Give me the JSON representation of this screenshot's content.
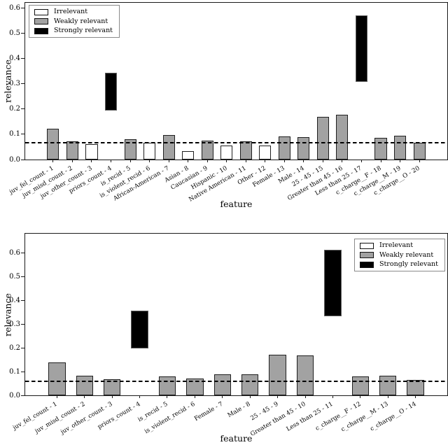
{
  "figure": {
    "background": "#ffffff"
  },
  "colors": {
    "irrelevant_fill": "#ffffff",
    "weak_fill": "#a2a2a2",
    "strong_fill": "#000000",
    "bar_edge": "#1f1f1f",
    "threshold_line": "#000000",
    "axes_edge": "#1a1a1a"
  },
  "legend": {
    "items": [
      {
        "label": "Irrelevant",
        "type": "irrelevant"
      },
      {
        "label": "Weakly relevant",
        "type": "weak"
      },
      {
        "label": "Strongly relevant",
        "type": "strong"
      }
    ]
  },
  "chart_data": [
    {
      "type": "bar",
      "title": "",
      "xlabel": "feature",
      "ylabel": "relevance",
      "ylim": [
        0,
        0.62
      ],
      "yticks": [
        0.0,
        0.1,
        0.2,
        0.3,
        0.4,
        0.5,
        0.6
      ],
      "grid": false,
      "legend_position": "upper-left",
      "threshold": 0.066,
      "bars": [
        {
          "label": "juv_fel_count - 1",
          "relevance_class": "weak",
          "low": 0,
          "high": 0.122
        },
        {
          "label": "juv_misd_count - 2",
          "relevance_class": "weak",
          "low": 0,
          "high": 0.073
        },
        {
          "label": "juv_other_count - 3",
          "relevance_class": "irrelevant",
          "low": 0,
          "high": 0.062
        },
        {
          "label": "priors_count - 4",
          "relevance_class": "strong",
          "low": 0.195,
          "high": 0.343
        },
        {
          "label": "is_recid - 5",
          "relevance_class": "weak",
          "low": 0,
          "high": 0.081
        },
        {
          "label": "is_violent_recid - 6",
          "relevance_class": "irrelevant",
          "low": 0,
          "high": 0.066
        },
        {
          "label": "African-American - 7",
          "relevance_class": "weak",
          "low": 0,
          "high": 0.096
        },
        {
          "label": "Asian - 8",
          "relevance_class": "irrelevant",
          "low": 0,
          "high": 0.034
        },
        {
          "label": "Caucasian - 9",
          "relevance_class": "weak",
          "low": 0,
          "high": 0.075
        },
        {
          "label": "Hispanic - 10",
          "relevance_class": "irrelevant",
          "low": 0,
          "high": 0.055
        },
        {
          "label": "Native American - 11",
          "relevance_class": "weak",
          "low": 0,
          "high": 0.073
        },
        {
          "label": "Other - 12",
          "relevance_class": "irrelevant",
          "low": 0,
          "high": 0.055
        },
        {
          "label": "Female - 13",
          "relevance_class": "weak",
          "low": 0,
          "high": 0.09
        },
        {
          "label": "Male - 14",
          "relevance_class": "weak",
          "low": 0,
          "high": 0.089
        },
        {
          "label": "25 - 45 - 15",
          "relevance_class": "weak",
          "low": 0,
          "high": 0.168
        },
        {
          "label": "Greater than 45 - 16",
          "relevance_class": "weak",
          "low": 0,
          "high": 0.176
        },
        {
          "label": "Less than 25 - 17",
          "relevance_class": "strong",
          "low": 0.308,
          "high": 0.57
        },
        {
          "label": "c_charge__F - 18",
          "relevance_class": "weak",
          "low": 0,
          "high": 0.085
        },
        {
          "label": "c_charge__M - 19",
          "relevance_class": "weak",
          "low": 0,
          "high": 0.094
        },
        {
          "label": "c_charge__O - 20",
          "relevance_class": "weak",
          "low": 0,
          "high": 0.067
        }
      ]
    },
    {
      "type": "bar",
      "title": "",
      "xlabel": "feature",
      "ylabel": "relevance",
      "ylim": [
        0,
        0.68
      ],
      "yticks": [
        0.0,
        0.1,
        0.2,
        0.3,
        0.4,
        0.5,
        0.6
      ],
      "grid": false,
      "legend_position": "upper-right",
      "threshold": 0.06,
      "bars": [
        {
          "label": "juv_fel_count - 1",
          "relevance_class": "weak",
          "low": 0,
          "high": 0.137
        },
        {
          "label": "juv_misd_count - 2",
          "relevance_class": "weak",
          "low": 0,
          "high": 0.083
        },
        {
          "label": "juv_other_count - 3",
          "relevance_class": "weak",
          "low": 0,
          "high": 0.067
        },
        {
          "label": "priors_count - 4",
          "relevance_class": "strong",
          "low": 0.197,
          "high": 0.357
        },
        {
          "label": "is_recid - 5",
          "relevance_class": "weak",
          "low": 0,
          "high": 0.079
        },
        {
          "label": "is_violent_recid - 6",
          "relevance_class": "weak",
          "low": 0,
          "high": 0.072
        },
        {
          "label": "Female - 7",
          "relevance_class": "weak",
          "low": 0,
          "high": 0.089
        },
        {
          "label": "Male - 8",
          "relevance_class": "weak",
          "low": 0,
          "high": 0.088
        },
        {
          "label": "25 - 45 - 9",
          "relevance_class": "weak",
          "low": 0,
          "high": 0.172
        },
        {
          "label": "Greater than 45 - 10",
          "relevance_class": "weak",
          "low": 0,
          "high": 0.168
        },
        {
          "label": "Less than 25 - 11",
          "relevance_class": "strong",
          "low": 0.332,
          "high": 0.612
        },
        {
          "label": "c_charge__F - 12",
          "relevance_class": "weak",
          "low": 0,
          "high": 0.08
        },
        {
          "label": "c_charge__M - 13",
          "relevance_class": "weak",
          "low": 0,
          "high": 0.082
        },
        {
          "label": "c_charge__O - 14",
          "relevance_class": "weak",
          "low": 0,
          "high": 0.066
        }
      ]
    }
  ]
}
